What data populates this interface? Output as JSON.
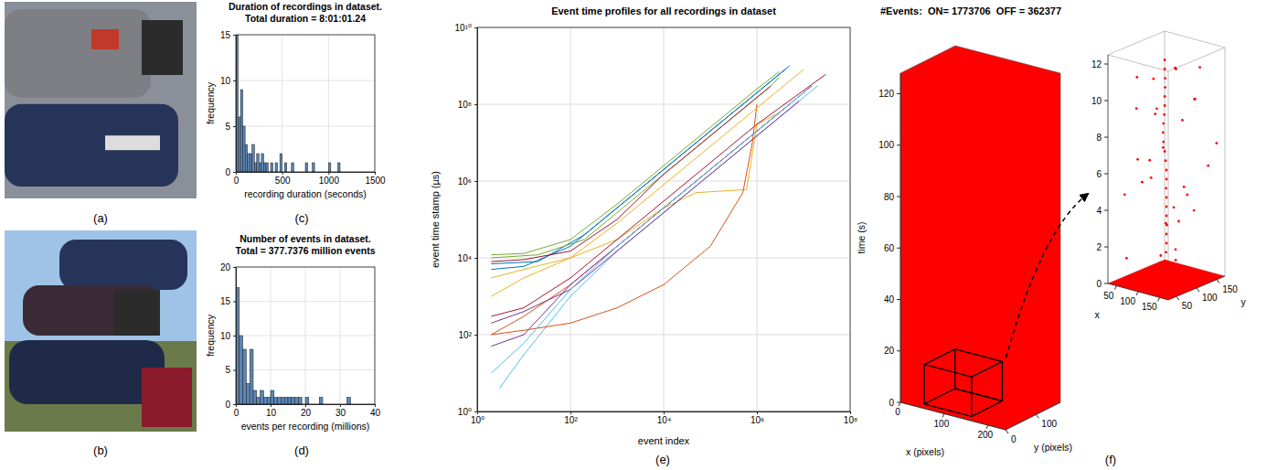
{
  "chart_data": [
    {
      "type": "image",
      "panel": "(a)"
    },
    {
      "type": "image",
      "panel": "(b)"
    },
    {
      "type": "histogram",
      "panel": "(c)",
      "title": "Duration of recordings in dataset.",
      "subtitle": "Total duration = 8:01:01.24",
      "xlabel": "recording duration (seconds)",
      "ylabel": "frequency",
      "color": "#5b86b5",
      "grid": true,
      "xlim": [
        0,
        1500
      ],
      "xticks": [
        0,
        500,
        1000,
        1500
      ],
      "ylim": [
        0,
        15
      ],
      "yticks": [
        0,
        5,
        10,
        15
      ],
      "bins": [
        0,
        25,
        50,
        75,
        100,
        125,
        150,
        175,
        200,
        225,
        250,
        275,
        300,
        325,
        350,
        375,
        400,
        425,
        450,
        475,
        500,
        525,
        550,
        575,
        600,
        625,
        650,
        675,
        700,
        725,
        750,
        775,
        800,
        825,
        850,
        875,
        900,
        925,
        950,
        975,
        1000,
        1025,
        1050,
        1075,
        1100,
        1125,
        1150,
        1175,
        1200,
        1225,
        1250,
        1275,
        1300,
        1325,
        1350,
        1375,
        1400,
        1425,
        1450,
        1475,
        1500
      ],
      "values": [
        15,
        6,
        9,
        5,
        3,
        2,
        2,
        3,
        1,
        2,
        1,
        2,
        1,
        1,
        0,
        1,
        0,
        1,
        0,
        2,
        0,
        1,
        0,
        0,
        1,
        0,
        0,
        0,
        0,
        0,
        1,
        0,
        0,
        1,
        0,
        0,
        0,
        0,
        0,
        0,
        1,
        0,
        0,
        0,
        1,
        0,
        0,
        0,
        0,
        0,
        0,
        0,
        0,
        0,
        0,
        0,
        0,
        0,
        0,
        0
      ]
    },
    {
      "type": "histogram",
      "panel": "(d)",
      "title": "Number of events in dataset.",
      "subtitle": "Total = 377.7376 million events",
      "xlabel": "events per recording (millions)",
      "ylabel": "frequency",
      "color": "#5b86b5",
      "grid": true,
      "xlim": [
        0,
        40
      ],
      "xticks": [
        0,
        10,
        20,
        30,
        40
      ],
      "ylim": [
        0,
        20
      ],
      "yticks": [
        0,
        5,
        10,
        15,
        20
      ],
      "bins": [
        0,
        1,
        2,
        3,
        4,
        5,
        6,
        7,
        8,
        9,
        10,
        11,
        12,
        13,
        14,
        15,
        16,
        17,
        18,
        19,
        20,
        21,
        22,
        23,
        24,
        25,
        26,
        27,
        28,
        29,
        30,
        31,
        32,
        33,
        34,
        35,
        36,
        37,
        38,
        39,
        40
      ],
      "values": [
        17,
        10,
        8,
        3,
        8,
        2,
        1,
        2,
        1,
        1,
        2,
        1,
        1,
        1,
        1,
        1,
        1,
        1,
        1,
        0,
        1,
        0,
        0,
        0,
        1,
        0,
        0,
        0,
        0,
        0,
        0,
        0,
        1,
        0,
        0,
        0,
        0,
        0,
        0,
        0
      ]
    },
    {
      "type": "line",
      "panel": "(e)",
      "title": "Event time profiles for all recordings in dataset",
      "xlabel": "event index",
      "ylabel": "event time stamp (µs)",
      "log": true,
      "grid": true,
      "xlim": [
        1,
        100000000.0
      ],
      "xticks": [
        {
          "value": 1,
          "label": "10⁰"
        },
        {
          "value": 100,
          "label": "10²"
        },
        {
          "value": 10000.0,
          "label": "10⁴"
        },
        {
          "value": 1000000.0,
          "label": "10⁶"
        },
        {
          "value": 100000000.0,
          "label": "10⁸"
        }
      ],
      "ylim": [
        1,
        10000000000.0
      ],
      "yticks": [
        {
          "value": 1,
          "label": "10⁰"
        },
        {
          "value": 100,
          "label": "10²"
        },
        {
          "value": 10000.0,
          "label": "10⁴"
        },
        {
          "value": 1000000.0,
          "label": "10⁶"
        },
        {
          "value": 100000000.0,
          "label": "10⁸"
        },
        {
          "value": 10000000000.0,
          "label": "10¹⁰"
        }
      ],
      "series": [
        {
          "color": "#0072BD",
          "x": [
            2,
            20,
            200,
            2000.0,
            20000.0,
            200000.0,
            2000000.0,
            5000000.0
          ],
          "values": [
            7000.0,
            8000.0,
            40000.0,
            400000.0,
            4000000.0,
            40000000.0,
            400000000.0,
            1000000000.0
          ]
        },
        {
          "color": "#D95319",
          "x": [
            2,
            10,
            100,
            1000.0,
            10000.0,
            100000.0,
            1000000.0,
            5000000.0
          ],
          "values": [
            100,
            300,
            2000.0,
            20000.0,
            200000.0,
            2000000.0,
            20000000.0,
            100000000.0
          ]
        },
        {
          "color": "#EDB120",
          "x": [
            2,
            10,
            100,
            1000.0,
            10000.0,
            50000.0,
            600000.0,
            1000000.0,
            3000000.0
          ],
          "values": [
            3000.0,
            5000.0,
            10000.0,
            30000.0,
            200000.0,
            500000.0,
            600000.0,
            30000000.0,
            60000000.0
          ]
        },
        {
          "color": "#7E2F8E",
          "x": [
            2,
            10,
            100,
            1000.0,
            10000.0,
            100000.0,
            1000000.0,
            15000000.0
          ],
          "values": [
            50,
            100,
            2000.0,
            20000.0,
            200000.0,
            2000000.0,
            20000000.0,
            300000000.0
          ]
        },
        {
          "color": "#77AC30",
          "x": [
            2,
            20,
            200,
            2000.0,
            20000.0,
            200000.0,
            2000000.0,
            3000000.0
          ],
          "values": [
            10000.0,
            12000.0,
            30000.0,
            300000.0,
            3000000.0,
            30000000.0,
            300000000.0,
            500000000.0
          ]
        },
        {
          "color": "#4DBEEE",
          "x": [
            3,
            10,
            100,
            1000.0,
            10000.0,
            100000.0,
            1000000.0,
            20000000.0
          ],
          "values": [
            4,
            30,
            1000.0,
            15000.0,
            150000.0,
            1500000.0,
            15000000.0,
            300000000.0
          ]
        },
        {
          "color": "#A2142F",
          "x": [
            2,
            10,
            100,
            1000.0,
            10000.0,
            100000.0,
            1000000.0,
            30000000.0
          ],
          "values": [
            300,
            500,
            3000.0,
            30000.0,
            300000.0,
            3000000.0,
            30000000.0,
            600000000.0
          ]
        },
        {
          "color": "#0072BD",
          "x": [
            2,
            10,
            100,
            1000.0,
            10000.0,
            100000.0,
            1000000.0,
            4000000.0
          ],
          "values": [
            5000.0,
            6000.0,
            20000.0,
            200000.0,
            2000000.0,
            20000000.0,
            200000000.0,
            800000000.0
          ]
        },
        {
          "color": "#D95319",
          "x": [
            2,
            10,
            100,
            1000.0,
            10000.0,
            100000.0,
            500000.0,
            800000.0,
            1000000.0
          ],
          "values": [
            100,
            130,
            200,
            500,
            2000.0,
            20000.0,
            500000.0,
            10000000.0,
            100000000.0
          ]
        },
        {
          "color": "#EDB120",
          "x": [
            2,
            10,
            100,
            1000.0,
            10000.0,
            100000.0,
            1000000.0,
            10000000.0
          ],
          "values": [
            1000.0,
            3000.0,
            10000.0,
            80000.0,
            800000.0,
            8000000.0,
            80000000.0,
            800000000.0
          ]
        },
        {
          "color": "#7E2F8E",
          "x": [
            2,
            10,
            100,
            1000.0,
            10000.0,
            100000.0,
            1000000.0,
            8000000.0
          ],
          "values": [
            200,
            400,
            1500.0,
            15000.0,
            150000.0,
            1500000.0,
            15000000.0,
            120000000.0
          ]
        },
        {
          "color": "#77AC30",
          "x": [
            2,
            10,
            100,
            1000.0,
            10000.0,
            100000.0,
            1000000.0,
            3000000.0
          ],
          "values": [
            12000.0,
            13000.0,
            30000.0,
            250000.0,
            2500000.0,
            25000000.0,
            250000000.0,
            700000000.0
          ]
        },
        {
          "color": "#4DBEEE",
          "x": [
            2,
            10,
            100,
            1000.0,
            10000.0,
            100000.0,
            1000000.0,
            12000000.0
          ],
          "values": [
            10,
            60,
            1500.0,
            20000.0,
            200000.0,
            2000000.0,
            20000000.0,
            240000000.0
          ]
        },
        {
          "color": "#A2142F",
          "x": [
            2,
            10,
            100,
            1000.0,
            10000.0,
            100000.0,
            1000000.0,
            2000000.0
          ],
          "values": [
            8000.0,
            9000.0,
            15000.0,
            100000.0,
            1500000.0,
            15000000.0,
            150000000.0,
            300000000.0
          ]
        }
      ]
    },
    {
      "type": "scatter3d",
      "panel": "(f)",
      "title": "#Events:  ON= 1773706  OFF = 362377",
      "xlabel": "x (pixels)",
      "ylabel": "y (pixels)",
      "zlabel": "time (s)",
      "color": "#ff0000",
      "xlim": [
        0,
        240
      ],
      "xticks": [
        0,
        100,
        200
      ],
      "ylim": [
        0,
        180
      ],
      "yticks": [
        0,
        100
      ],
      "zlim": [
        0,
        128
      ],
      "zticks": [
        0,
        20,
        40,
        60,
        80,
        100,
        120
      ]
    },
    {
      "type": "scatter3d",
      "xlabel": "x",
      "ylabel": "y",
      "color": "#ff0000",
      "xlim": [
        30,
        170
      ],
      "xticks": [
        50,
        100,
        150
      ],
      "ylim": [
        30,
        170
      ],
      "yticks": [
        50,
        100,
        150
      ],
      "zlim": [
        0,
        12.5
      ],
      "zticks": [
        0,
        2,
        4,
        6,
        8,
        10,
        12
      ],
      "x": [
        100,
        100,
        99,
        100,
        100,
        101,
        100,
        100,
        100,
        99,
        100,
        100,
        98,
        96,
        93,
        92,
        93,
        95,
        96,
        96,
        97,
        97,
        96,
        96,
        45,
        140,
        70,
        160,
        120,
        55,
        150,
        85,
        130,
        40,
        110,
        165,
        60,
        125,
        75,
        145,
        50,
        100,
        160,
        90,
        35,
        135,
        70,
        155,
        115,
        80,
        140,
        65,
        150,
        105
      ],
      "y": [
        100,
        100,
        100,
        100,
        100,
        100,
        100,
        100,
        100,
        100,
        100,
        100,
        100,
        100,
        100,
        100,
        100,
        100,
        100,
        100,
        100,
        100,
        100,
        100,
        60,
        80,
        150,
        40,
        130,
        110,
        150,
        45,
        60,
        140,
        160,
        100,
        70,
        95,
        125,
        120,
        50,
        40,
        160,
        150,
        95,
        35,
        100,
        65,
        70,
        80,
        140,
        160,
        90,
        125
      ],
      "z": [
        0.5,
        1,
        1.5,
        2,
        2.5,
        3,
        3.5,
        4,
        4.5,
        5,
        5.5,
        6,
        6.5,
        7,
        7.5,
        8,
        8.5,
        9,
        9.5,
        10,
        10.5,
        11,
        11.5,
        12,
        1.2,
        2.1,
        3.3,
        0.8,
        4.5,
        5.2,
        6.1,
        7,
        7.8,
        8.6,
        9.4,
        10.3,
        11.1,
        11.8,
        2.7,
        3.9,
        4.8,
        5.9,
        7.3,
        8.2,
        9,
        9.9,
        10.8,
        12.2,
        1.7,
        6.6,
        11.5,
        0.3,
        5.5,
        3
      ]
    }
  ]
}
